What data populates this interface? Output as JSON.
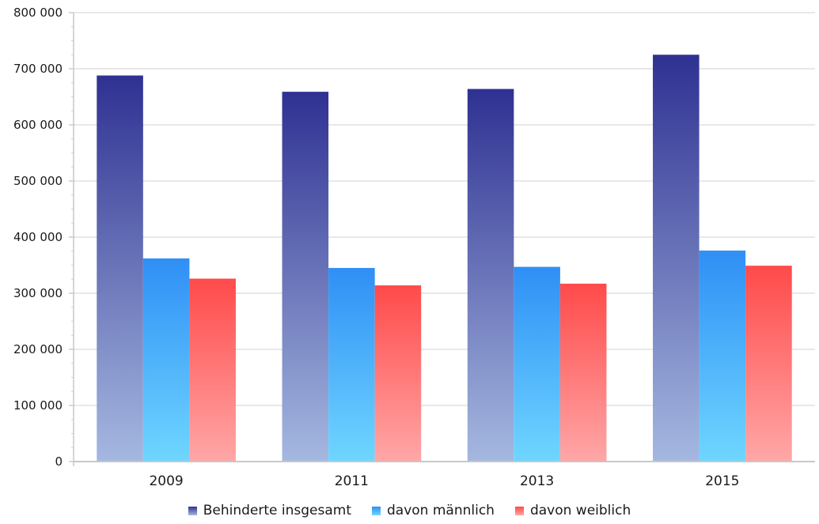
{
  "chart_data": {
    "type": "bar",
    "title": "",
    "xlabel": "",
    "ylabel": "",
    "categories": [
      "2009",
      "2011",
      "2013",
      "2015"
    ],
    "series": [
      {
        "name": "Behinderte insgesamt",
        "values": [
          688000,
          659000,
          664000,
          725000
        ],
        "color": "#2f3192"
      },
      {
        "name": "davon männlich",
        "values": [
          362000,
          345000,
          347000,
          376000
        ],
        "color": "#2f8ff5"
      },
      {
        "name": "davon weiblich",
        "values": [
          326000,
          314000,
          317000,
          349000
        ],
        "color": "#ff4a4a"
      }
    ],
    "ylim": [
      0,
      800000
    ],
    "yticks": [
      0,
      100000,
      200000,
      300000,
      400000,
      500000,
      600000,
      700000,
      800000
    ],
    "ytick_labels": [
      "0",
      "100 000",
      "200 000",
      "300 000",
      "400 000",
      "500 000",
      "600 000",
      "700 000",
      "800 000"
    ],
    "grid": true,
    "legend_position": "bottom"
  }
}
